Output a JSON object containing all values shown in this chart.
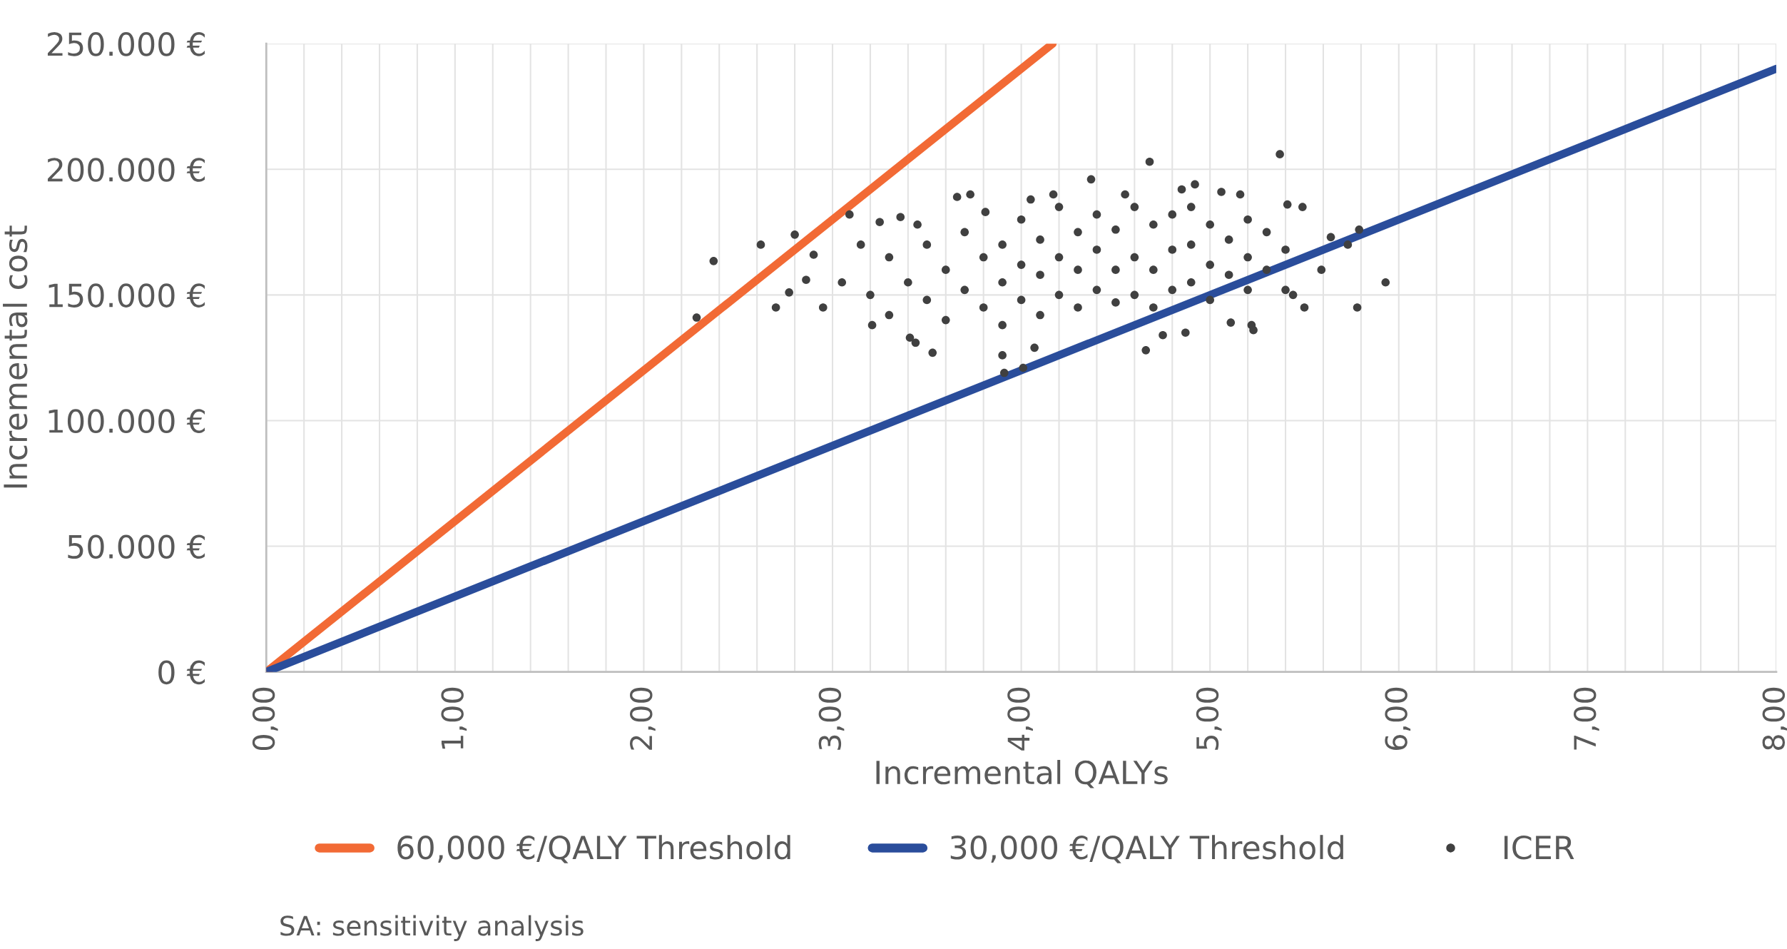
{
  "chart_data": {
    "type": "scatter",
    "xlabel": "Incremental QALYs",
    "ylabel": "Incremental cost",
    "xlim": [
      0,
      8
    ],
    "ylim": [
      0,
      250000
    ],
    "xticks": [
      {
        "value": 0,
        "label": "0,00"
      },
      {
        "value": 0.2,
        "label": null
      },
      {
        "value": 0.4,
        "label": null
      },
      {
        "value": 0.6,
        "label": null
      },
      {
        "value": 0.8,
        "label": null
      },
      {
        "value": 1,
        "label": "1,00"
      },
      {
        "value": 1.2,
        "label": null
      },
      {
        "value": 1.4,
        "label": null
      },
      {
        "value": 1.6,
        "label": null
      },
      {
        "value": 1.8,
        "label": null
      },
      {
        "value": 2,
        "label": "2,00"
      },
      {
        "value": 2.2,
        "label": null
      },
      {
        "value": 2.4,
        "label": null
      },
      {
        "value": 2.6,
        "label": null
      },
      {
        "value": 2.8,
        "label": null
      },
      {
        "value": 3,
        "label": "3,00"
      },
      {
        "value": 3.2,
        "label": null
      },
      {
        "value": 3.4,
        "label": null
      },
      {
        "value": 3.6,
        "label": null
      },
      {
        "value": 3.8,
        "label": null
      },
      {
        "value": 4,
        "label": "4,00"
      },
      {
        "value": 4.2,
        "label": null
      },
      {
        "value": 4.4,
        "label": null
      },
      {
        "value": 4.6,
        "label": null
      },
      {
        "value": 4.8,
        "label": null
      },
      {
        "value": 5,
        "label": "5,00"
      },
      {
        "value": 5.2,
        "label": null
      },
      {
        "value": 5.4,
        "label": null
      },
      {
        "value": 5.6,
        "label": null
      },
      {
        "value": 5.8,
        "label": null
      },
      {
        "value": 6,
        "label": "6,00"
      },
      {
        "value": 6.2,
        "label": null
      },
      {
        "value": 6.4,
        "label": null
      },
      {
        "value": 6.6,
        "label": null
      },
      {
        "value": 6.8,
        "label": null
      },
      {
        "value": 7,
        "label": "7,00"
      },
      {
        "value": 7.2,
        "label": null
      },
      {
        "value": 7.4,
        "label": null
      },
      {
        "value": 7.6,
        "label": null
      },
      {
        "value": 7.8,
        "label": null
      },
      {
        "value": 8,
        "label": "8,00"
      }
    ],
    "yticks": [
      {
        "value": 0,
        "label": "0 €"
      },
      {
        "value": 50000,
        "label": "50.000 €"
      },
      {
        "value": 100000,
        "label": "100.000 €"
      },
      {
        "value": 150000,
        "label": "150.000 €"
      },
      {
        "value": 200000,
        "label": "200.000 €"
      },
      {
        "value": 250000,
        "label": "250.000 €"
      }
    ],
    "grid": true,
    "legend": "bottom",
    "marker": "circle",
    "annotations": [
      "SA: sensitivity analysis"
    ],
    "series": [
      {
        "name": "60,000 €/QALY Threshold",
        "type": "line",
        "line_style": "solid",
        "marker": "none",
        "color": "#f26a35",
        "x": [
          0,
          4.1667
        ],
        "values": [
          0,
          250000
        ]
      },
      {
        "name": "30,000 €/QALY Threshold",
        "type": "line",
        "line_style": "solid",
        "marker": "none",
        "color": "#2a4d9b",
        "x": [
          0,
          8
        ],
        "values": [
          0,
          240000
        ]
      },
      {
        "name": "ICER",
        "color": "#404040",
        "x": [
          2.28,
          2.37,
          2.62,
          2.8,
          2.7,
          2.9,
          2.77,
          2.86,
          2.95,
          3.05,
          3.09,
          3.21,
          3.25,
          3.36,
          3.41,
          3.44,
          3.53,
          3.66,
          3.73,
          3.81,
          3.9,
          3.91,
          4.01,
          4.07,
          4.17,
          4.37,
          4.68,
          4.92,
          5.37,
          4.66,
          4.75,
          4.87,
          5.22,
          5.11,
          5.23,
          5.59,
          5.64,
          5.73,
          5.79,
          5.78,
          5.93,
          5.5,
          5.44,
          5.41,
          5.49,
          5.06,
          5.16,
          3.3,
          3.4,
          3.5,
          3.5,
          3.6,
          3.6,
          3.7,
          3.7,
          3.8,
          3.8,
          3.9,
          3.9,
          3.9,
          4.0,
          4.0,
          4.0,
          4.1,
          4.1,
          4.1,
          4.2,
          4.2,
          4.2,
          4.3,
          4.3,
          4.3,
          4.4,
          4.4,
          4.4,
          4.5,
          4.5,
          4.5,
          4.6,
          4.6,
          4.6,
          4.7,
          4.7,
          4.7,
          4.8,
          4.8,
          4.8,
          4.9,
          4.9,
          4.9,
          5.0,
          5.0,
          5.0,
          5.1,
          5.1,
          5.2,
          5.2,
          5.2,
          5.3,
          5.3,
          5.4,
          5.4,
          3.2,
          3.3,
          3.15,
          3.45,
          4.05,
          4.55,
          4.85
        ],
        "values": [
          141000,
          163500,
          170000,
          174000,
          145000,
          166000,
          151000,
          156000,
          145000,
          155000,
          182000,
          138000,
          179000,
          181000,
          133000,
          131000,
          127000,
          189000,
          190000,
          183000,
          126000,
          119000,
          121000,
          129000,
          190000,
          196000,
          203000,
          194000,
          206000,
          128000,
          134000,
          135000,
          138000,
          139000,
          136000,
          160000,
          173000,
          170000,
          176000,
          145000,
          155000,
          145000,
          150000,
          186000,
          185000,
          191000,
          190000,
          165000,
          155000,
          170000,
          148000,
          160000,
          140000,
          175000,
          152000,
          165000,
          145000,
          170000,
          155000,
          138000,
          180000,
          162000,
          148000,
          172000,
          158000,
          142000,
          185000,
          165000,
          150000,
          175000,
          160000,
          145000,
          182000,
          168000,
          152000,
          176000,
          160000,
          147000,
          185000,
          165000,
          150000,
          178000,
          160000,
          145000,
          182000,
          168000,
          152000,
          185000,
          170000,
          155000,
          178000,
          162000,
          148000,
          172000,
          158000,
          180000,
          165000,
          152000,
          175000,
          160000,
          168000,
          152000,
          150000,
          142000,
          170000,
          178000,
          188000,
          190000,
          192000
        ]
      }
    ]
  }
}
